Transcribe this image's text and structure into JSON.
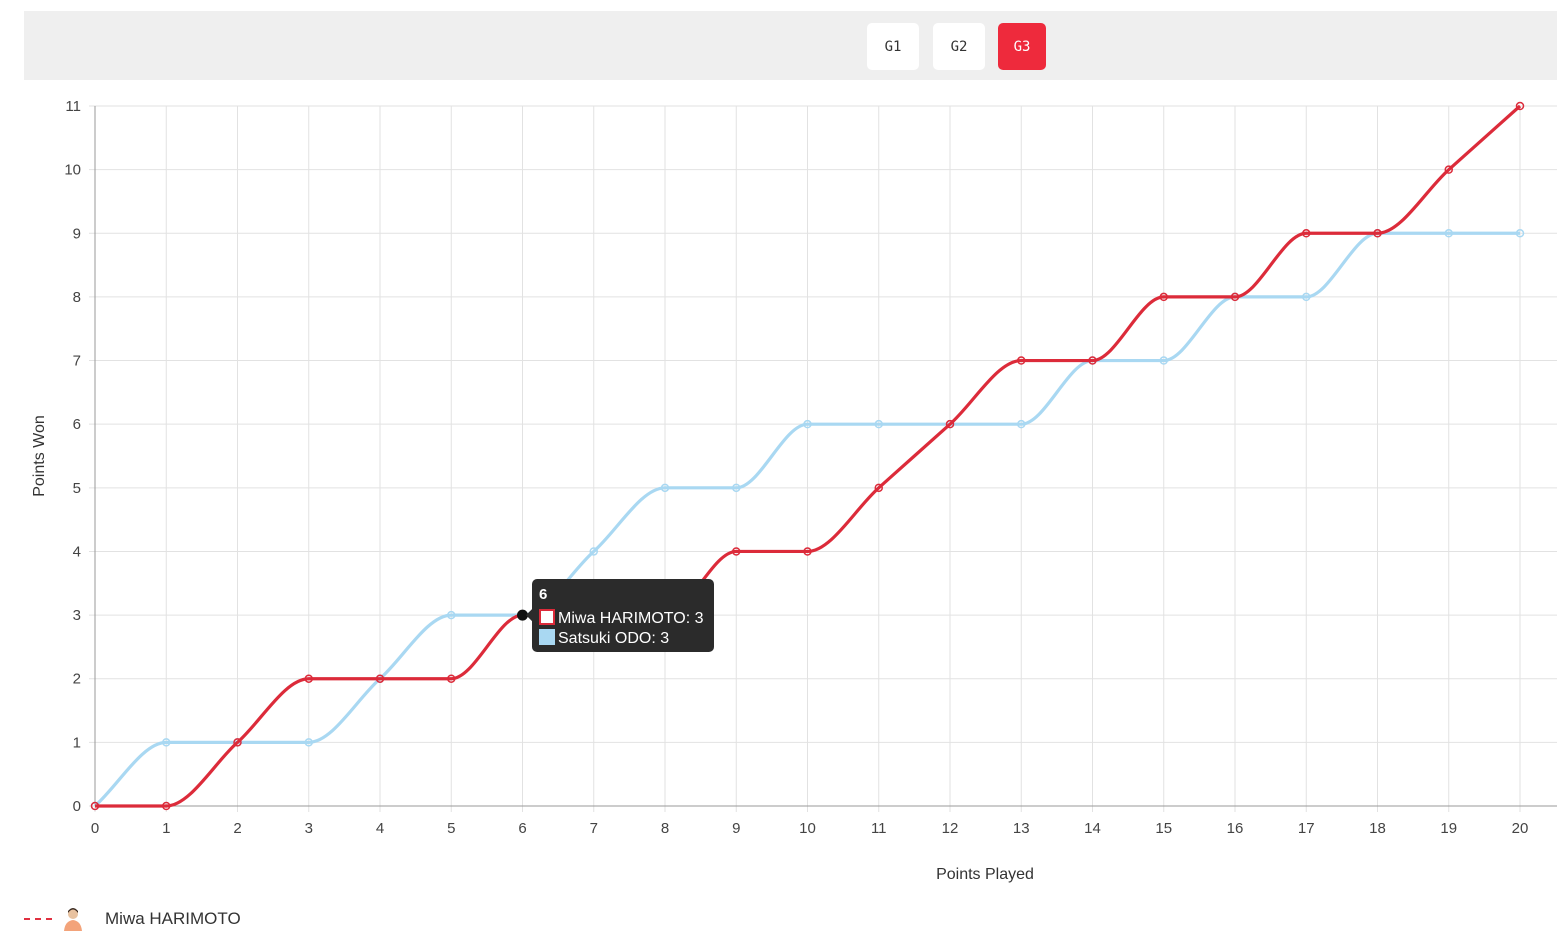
{
  "games": {
    "buttons": [
      {
        "label": "G1",
        "active": false
      },
      {
        "label": "G2",
        "active": false
      },
      {
        "label": "G3",
        "active": true
      }
    ]
  },
  "colors": {
    "harimoto": "#dc2b3a",
    "odo": "#a9d8f2",
    "grid": "#e2e2e2",
    "tooltip_bg": "#2b2b2b",
    "active_button": "#ee2a3c"
  },
  "chart_data": {
    "type": "line",
    "xlabel": "Points Played",
    "ylabel": "Points Won",
    "x": [
      0,
      1,
      2,
      3,
      4,
      5,
      6,
      7,
      8,
      9,
      10,
      11,
      12,
      13,
      14,
      15,
      16,
      17,
      18,
      19,
      20
    ],
    "xlim": [
      0,
      20
    ],
    "ylim": [
      0,
      11
    ],
    "xticks": [
      "0",
      "1",
      "2",
      "3",
      "4",
      "5",
      "6",
      "7",
      "8",
      "9",
      "10",
      "11",
      "12",
      "13",
      "14",
      "15",
      "16",
      "17",
      "18",
      "19",
      "20"
    ],
    "yticks": [
      "0",
      "1",
      "2",
      "3",
      "4",
      "5",
      "6",
      "7",
      "8",
      "9",
      "10",
      "11"
    ],
    "grid": true,
    "series": [
      {
        "name": "Miwa HARIMOTO",
        "color": "#dc2b3a",
        "values": [
          0,
          0,
          1,
          2,
          2,
          2,
          3,
          3,
          3,
          4,
          4,
          5,
          6,
          7,
          7,
          8,
          8,
          9,
          9,
          10,
          11
        ]
      },
      {
        "name": "Satsuki ODO",
        "color": "#a9d8f2",
        "values": [
          0,
          1,
          1,
          1,
          2,
          3,
          3,
          4,
          5,
          5,
          6,
          6,
          6,
          6,
          7,
          7,
          8,
          8,
          9,
          9,
          9
        ]
      }
    ],
    "tooltip": {
      "title": "6",
      "x_index": 6,
      "lines": [
        "Miwa HARIMOTO: 3",
        "Satsuki ODO: 3"
      ]
    }
  },
  "legend": {
    "items": [
      {
        "label": "Miwa HARIMOTO"
      }
    ]
  }
}
